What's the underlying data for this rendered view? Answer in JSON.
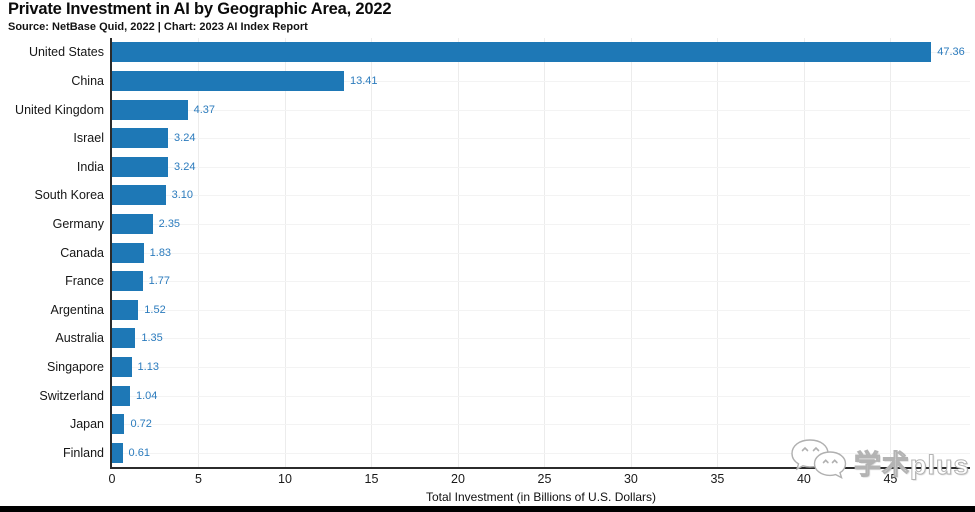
{
  "header": {
    "title": "Private Investment in AI by Geographic Area, 2022",
    "source": "Source: NetBase Quid, 2022 | Chart: 2023 AI Index Report"
  },
  "chart_data": {
    "type": "bar",
    "orientation": "horizontal",
    "title": "Private Investment in AI by Geographic Area, 2022",
    "categories": [
      "United States",
      "China",
      "United Kingdom",
      "Israel",
      "India",
      "South Korea",
      "Germany",
      "Canada",
      "France",
      "Argentina",
      "Australia",
      "Singapore",
      "Switzerland",
      "Japan",
      "Finland"
    ],
    "values": [
      47.36,
      13.41,
      4.37,
      3.24,
      3.24,
      3.1,
      2.35,
      1.83,
      1.77,
      1.52,
      1.35,
      1.13,
      1.04,
      0.72,
      0.61
    ],
    "value_labels": [
      "47.36",
      "13.41",
      "4.37",
      "3.24",
      "3.24",
      "3.10",
      "2.35",
      "1.83",
      "1.77",
      "1.52",
      "1.35",
      "1.13",
      "1.04",
      "0.72",
      "0.61"
    ],
    "xlabel": "Total Investment (in Billions of U.S. Dollars)",
    "xticks": [
      0,
      5,
      10,
      15,
      20,
      25,
      30,
      35,
      40,
      45
    ],
    "xlim": [
      0,
      49.6
    ],
    "grid": true,
    "legend": "none",
    "bar_color": "#1E78B6",
    "value_label_color": "#2B7BBD",
    "axis_color": "#2b2b2b"
  },
  "watermark": {
    "text": "学术plus",
    "icon": "wechat-chat-bubbles-icon"
  }
}
